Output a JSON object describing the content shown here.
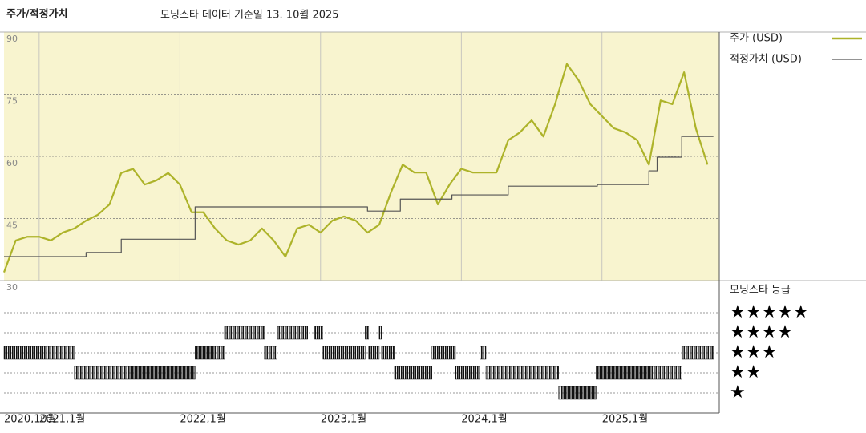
{
  "chart_data": {
    "type": "line",
    "title": "주가/적정가치",
    "subtitle": "모닝스타 데이터 기준일 13. 10월 2025",
    "xlim": [
      0,
      61
    ],
    "xticks": [
      {
        "value": 0,
        "label": "2020,10월"
      },
      {
        "value": 3,
        "label": "2021,1월"
      },
      {
        "value": 15,
        "label": "2022,1월"
      },
      {
        "value": 27,
        "label": "2023,1월"
      },
      {
        "value": 39,
        "label": "2024,1월"
      },
      {
        "value": 51,
        "label": "2025,1월"
      }
    ],
    "ylim": [
      30,
      90
    ],
    "yticks": [
      30,
      45,
      60,
      75,
      90
    ],
    "grid": true,
    "background": "#f8f4cf",
    "series": [
      {
        "name": "주가 (USD)",
        "color": "#adb32a",
        "x": [
          0,
          1,
          2,
          3,
          4,
          5,
          6,
          7,
          8,
          9,
          10,
          11,
          12,
          13,
          14,
          15,
          16,
          17,
          18,
          19,
          20,
          21,
          22,
          23,
          24,
          25,
          26,
          27,
          28,
          29,
          30,
          31,
          32,
          33,
          34,
          35,
          36,
          37,
          38,
          39,
          40,
          41,
          42,
          43,
          44,
          45,
          46,
          47,
          48,
          49,
          50,
          51,
          52,
          53,
          54,
          55,
          56,
          57,
          58,
          59,
          60
        ],
        "values": [
          32,
          39.7,
          40.6,
          40.6,
          39.7,
          41.6,
          42.6,
          44.5,
          45.9,
          48.4,
          56,
          57,
          53.2,
          54.2,
          56,
          53.2,
          46.5,
          46.5,
          42.6,
          39.7,
          38.7,
          39.7,
          42.6,
          39.7,
          35.8,
          42.6,
          43.5,
          41.6,
          44.5,
          45.5,
          44.5,
          41.6,
          43.5,
          51.3,
          58,
          56.1,
          56.1,
          48.4,
          53.2,
          57,
          56.1,
          56.1,
          56.1,
          63.9,
          65.8,
          68.7,
          64.8,
          72.6,
          82.3,
          78.4,
          72.6,
          69.7,
          66.8,
          65.8,
          63.9,
          58,
          73.5,
          72.6,
          80.3,
          66.8,
          58
        ]
      },
      {
        "name": "적정가치 (USD)",
        "color": "#555555",
        "step": "post",
        "x": [
          0,
          7,
          10,
          16.3,
          31,
          33.8,
          38.2,
          43,
          50.6,
          55,
          55.7,
          57.8,
          60.5
        ],
        "values": [
          35.8,
          36.8,
          40,
          47.8,
          46.8,
          49.7,
          50.7,
          52.8,
          53.2,
          56.5,
          59.8,
          64.8,
          64.8
        ]
      }
    ],
    "ratings": {
      "title": "모닝스타 등급",
      "color": "#111111",
      "ylim": [
        0,
        6.6
      ],
      "ticks": [
        {
          "value": 5,
          "label": "★★★★★"
        },
        {
          "value": 4,
          "label": "★★★★"
        },
        {
          "value": 3,
          "label": "★★★"
        },
        {
          "value": 2,
          "label": "★★"
        },
        {
          "value": 1,
          "label": "★"
        }
      ],
      "x_start": [
        0,
        6,
        16.3,
        18.8,
        22.2,
        23.3,
        26.5,
        27.2,
        30.8,
        31.1,
        32,
        32.2,
        33.3,
        36.5,
        38.5,
        40.6,
        41.1,
        47.3,
        50.5,
        57.8
      ],
      "x_end": [
        6,
        16.3,
        18.8,
        22.2,
        23.3,
        25.9,
        27.2,
        30.8,
        31.1,
        32,
        32.2,
        33.3,
        36.5,
        38.5,
        40.6,
        41.1,
        47.3,
        50.5,
        57.8,
        60.5
      ],
      "values": [
        3,
        2,
        3,
        4,
        3,
        4,
        4,
        3,
        4,
        3,
        4,
        3,
        2,
        3,
        2,
        3,
        2,
        1,
        2,
        3
      ]
    }
  }
}
